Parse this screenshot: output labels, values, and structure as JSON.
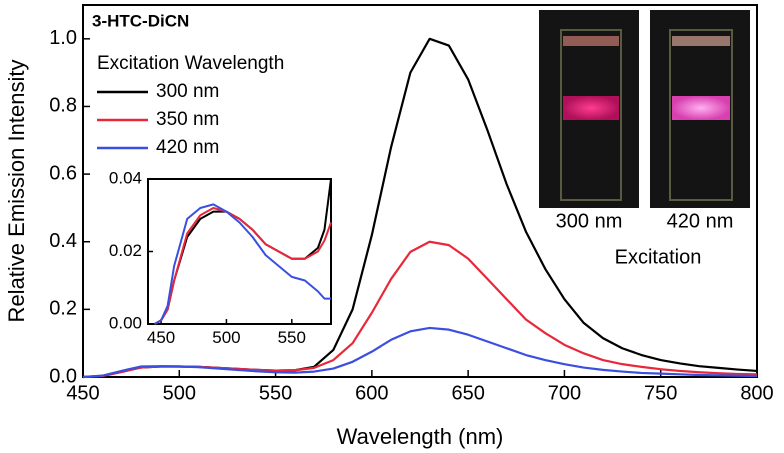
{
  "chart_data": [
    {
      "type": "line",
      "xlabel": "Wavelength (nm)",
      "ylabel": "Relative Emission Intensity",
      "xlim": [
        450,
        800
      ],
      "xticks": [
        450,
        500,
        550,
        600,
        650,
        700,
        750,
        800
      ],
      "ylim": [
        0,
        1.1
      ],
      "yticks": [
        {
          "value": 0,
          "label": "0.0"
        },
        {
          "value": 0.2,
          "label": "0.2"
        },
        {
          "value": 0.4,
          "label": "0.4"
        },
        {
          "value": 0.6,
          "label": "0.6"
        },
        {
          "value": 0.8,
          "label": "0.8"
        },
        {
          "value": 1,
          "label": "1.0"
        }
      ],
      "annotations": {
        "compound": "3-HTC-DiCN",
        "photo_labels": [
          "300 nm",
          "420 nm"
        ],
        "photo_caption": "Excitation"
      },
      "legend_title": "Excitation Wavelength",
      "x": [
        450,
        460,
        470,
        480,
        490,
        500,
        510,
        520,
        530,
        540,
        550,
        560,
        570,
        580,
        590,
        600,
        610,
        620,
        630,
        640,
        650,
        660,
        670,
        680,
        690,
        700,
        710,
        720,
        730,
        740,
        750,
        760,
        770,
        780,
        790,
        800
      ],
      "series": [
        {
          "name": "300 nm",
          "color": "#000000",
          "values": [
            0,
            0.003,
            0.015,
            0.028,
            0.031,
            0.031,
            0.03,
            0.027,
            0.024,
            0.021,
            0.019,
            0.02,
            0.03,
            0.08,
            0.2,
            0.42,
            0.68,
            0.9,
            1.0,
            0.98,
            0.88,
            0.73,
            0.57,
            0.43,
            0.32,
            0.23,
            0.16,
            0.115,
            0.085,
            0.065,
            0.05,
            0.04,
            0.032,
            0.027,
            0.022,
            0.018
          ]
        },
        {
          "name": "350 nm",
          "color": "#e8283a",
          "values": [
            0,
            0.003,
            0.015,
            0.028,
            0.031,
            0.031,
            0.03,
            0.027,
            0.024,
            0.021,
            0.019,
            0.02,
            0.027,
            0.05,
            0.1,
            0.19,
            0.29,
            0.37,
            0.4,
            0.39,
            0.35,
            0.29,
            0.23,
            0.17,
            0.13,
            0.095,
            0.07,
            0.05,
            0.038,
            0.03,
            0.023,
            0.018,
            0.014,
            0.011,
            0.009,
            0.008
          ]
        },
        {
          "name": "420 nm",
          "color": "#3a4fe0",
          "values": [
            0,
            0.004,
            0.018,
            0.031,
            0.032,
            0.031,
            0.029,
            0.025,
            0.021,
            0.017,
            0.014,
            0.013,
            0.016,
            0.025,
            0.045,
            0.075,
            0.11,
            0.135,
            0.145,
            0.14,
            0.125,
            0.105,
            0.085,
            0.065,
            0.05,
            0.038,
            0.028,
            0.021,
            0.016,
            0.012,
            0.01,
            0.008,
            0.006,
            0.005,
            0.004,
            0.003
          ]
        }
      ]
    },
    {
      "type": "line",
      "xlim": [
        440,
        580
      ],
      "xticks": [
        450,
        500,
        550
      ],
      "ylim": [
        0,
        0.04
      ],
      "yticks": [
        {
          "value": 0,
          "label": "0.00"
        },
        {
          "value": 0.02,
          "label": "0.02"
        },
        {
          "value": 0.04,
          "label": "0.04"
        }
      ],
      "x": [
        445,
        450,
        455,
        460,
        470,
        480,
        490,
        500,
        510,
        520,
        530,
        540,
        550,
        560,
        570,
        575,
        580
      ],
      "series": [
        {
          "color": "#000000",
          "values": [
            0,
            0.001,
            0.004,
            0.012,
            0.024,
            0.029,
            0.031,
            0.031,
            0.029,
            0.026,
            0.022,
            0.02,
            0.018,
            0.018,
            0.021,
            0.026,
            0.04
          ]
        },
        {
          "color": "#e8283a",
          "values": [
            0,
            0.001,
            0.004,
            0.012,
            0.025,
            0.03,
            0.032,
            0.031,
            0.029,
            0.026,
            0.022,
            0.02,
            0.018,
            0.018,
            0.02,
            0.023,
            0.028
          ]
        },
        {
          "color": "#3a4fe0",
          "values": [
            0,
            0.001,
            0.005,
            0.016,
            0.029,
            0.032,
            0.033,
            0.031,
            0.028,
            0.024,
            0.019,
            0.016,
            0.013,
            0.012,
            0.009,
            0.007,
            0.007
          ]
        }
      ]
    }
  ]
}
